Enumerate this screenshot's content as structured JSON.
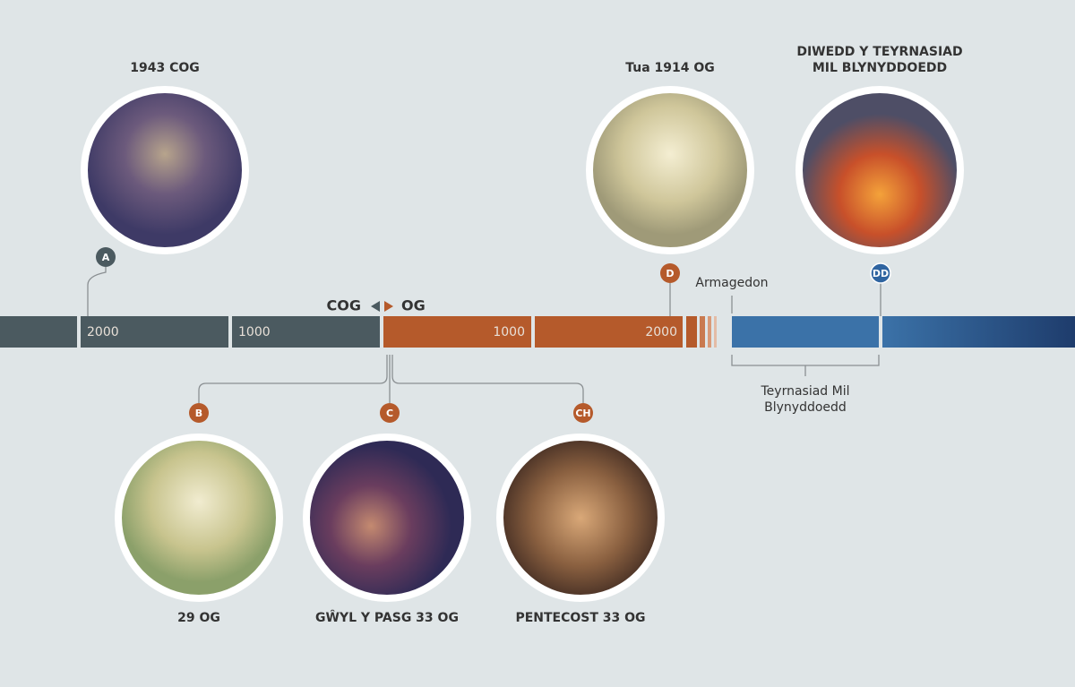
{
  "events": [
    {
      "marker": "A",
      "label_lines": [
        "1943 COG"
      ]
    },
    {
      "marker": "B",
      "label_lines": [
        "29 OG"
      ]
    },
    {
      "marker": "C",
      "label_lines": [
        "GŴYL Y PASG 33 OG"
      ]
    },
    {
      "marker": "CH",
      "label_lines": [
        "PENTECOST 33 OG"
      ]
    },
    {
      "marker": "D",
      "label_lines": [
        "Tua 1914 OG"
      ]
    },
    {
      "marker": "DD",
      "label_lines": [
        "DIWEDD Y TEYRNASIAD",
        "MIL BLYNYDDOEDD"
      ]
    }
  ],
  "timeline": {
    "era_before": "COG",
    "era_after": "OG",
    "bar_labels": [
      "2000",
      "1000",
      "1000",
      "2000"
    ],
    "armageddon": "Armagedon",
    "reign_lines": [
      "Teyrnasiad Mil",
      "Blynyddoedd"
    ]
  }
}
